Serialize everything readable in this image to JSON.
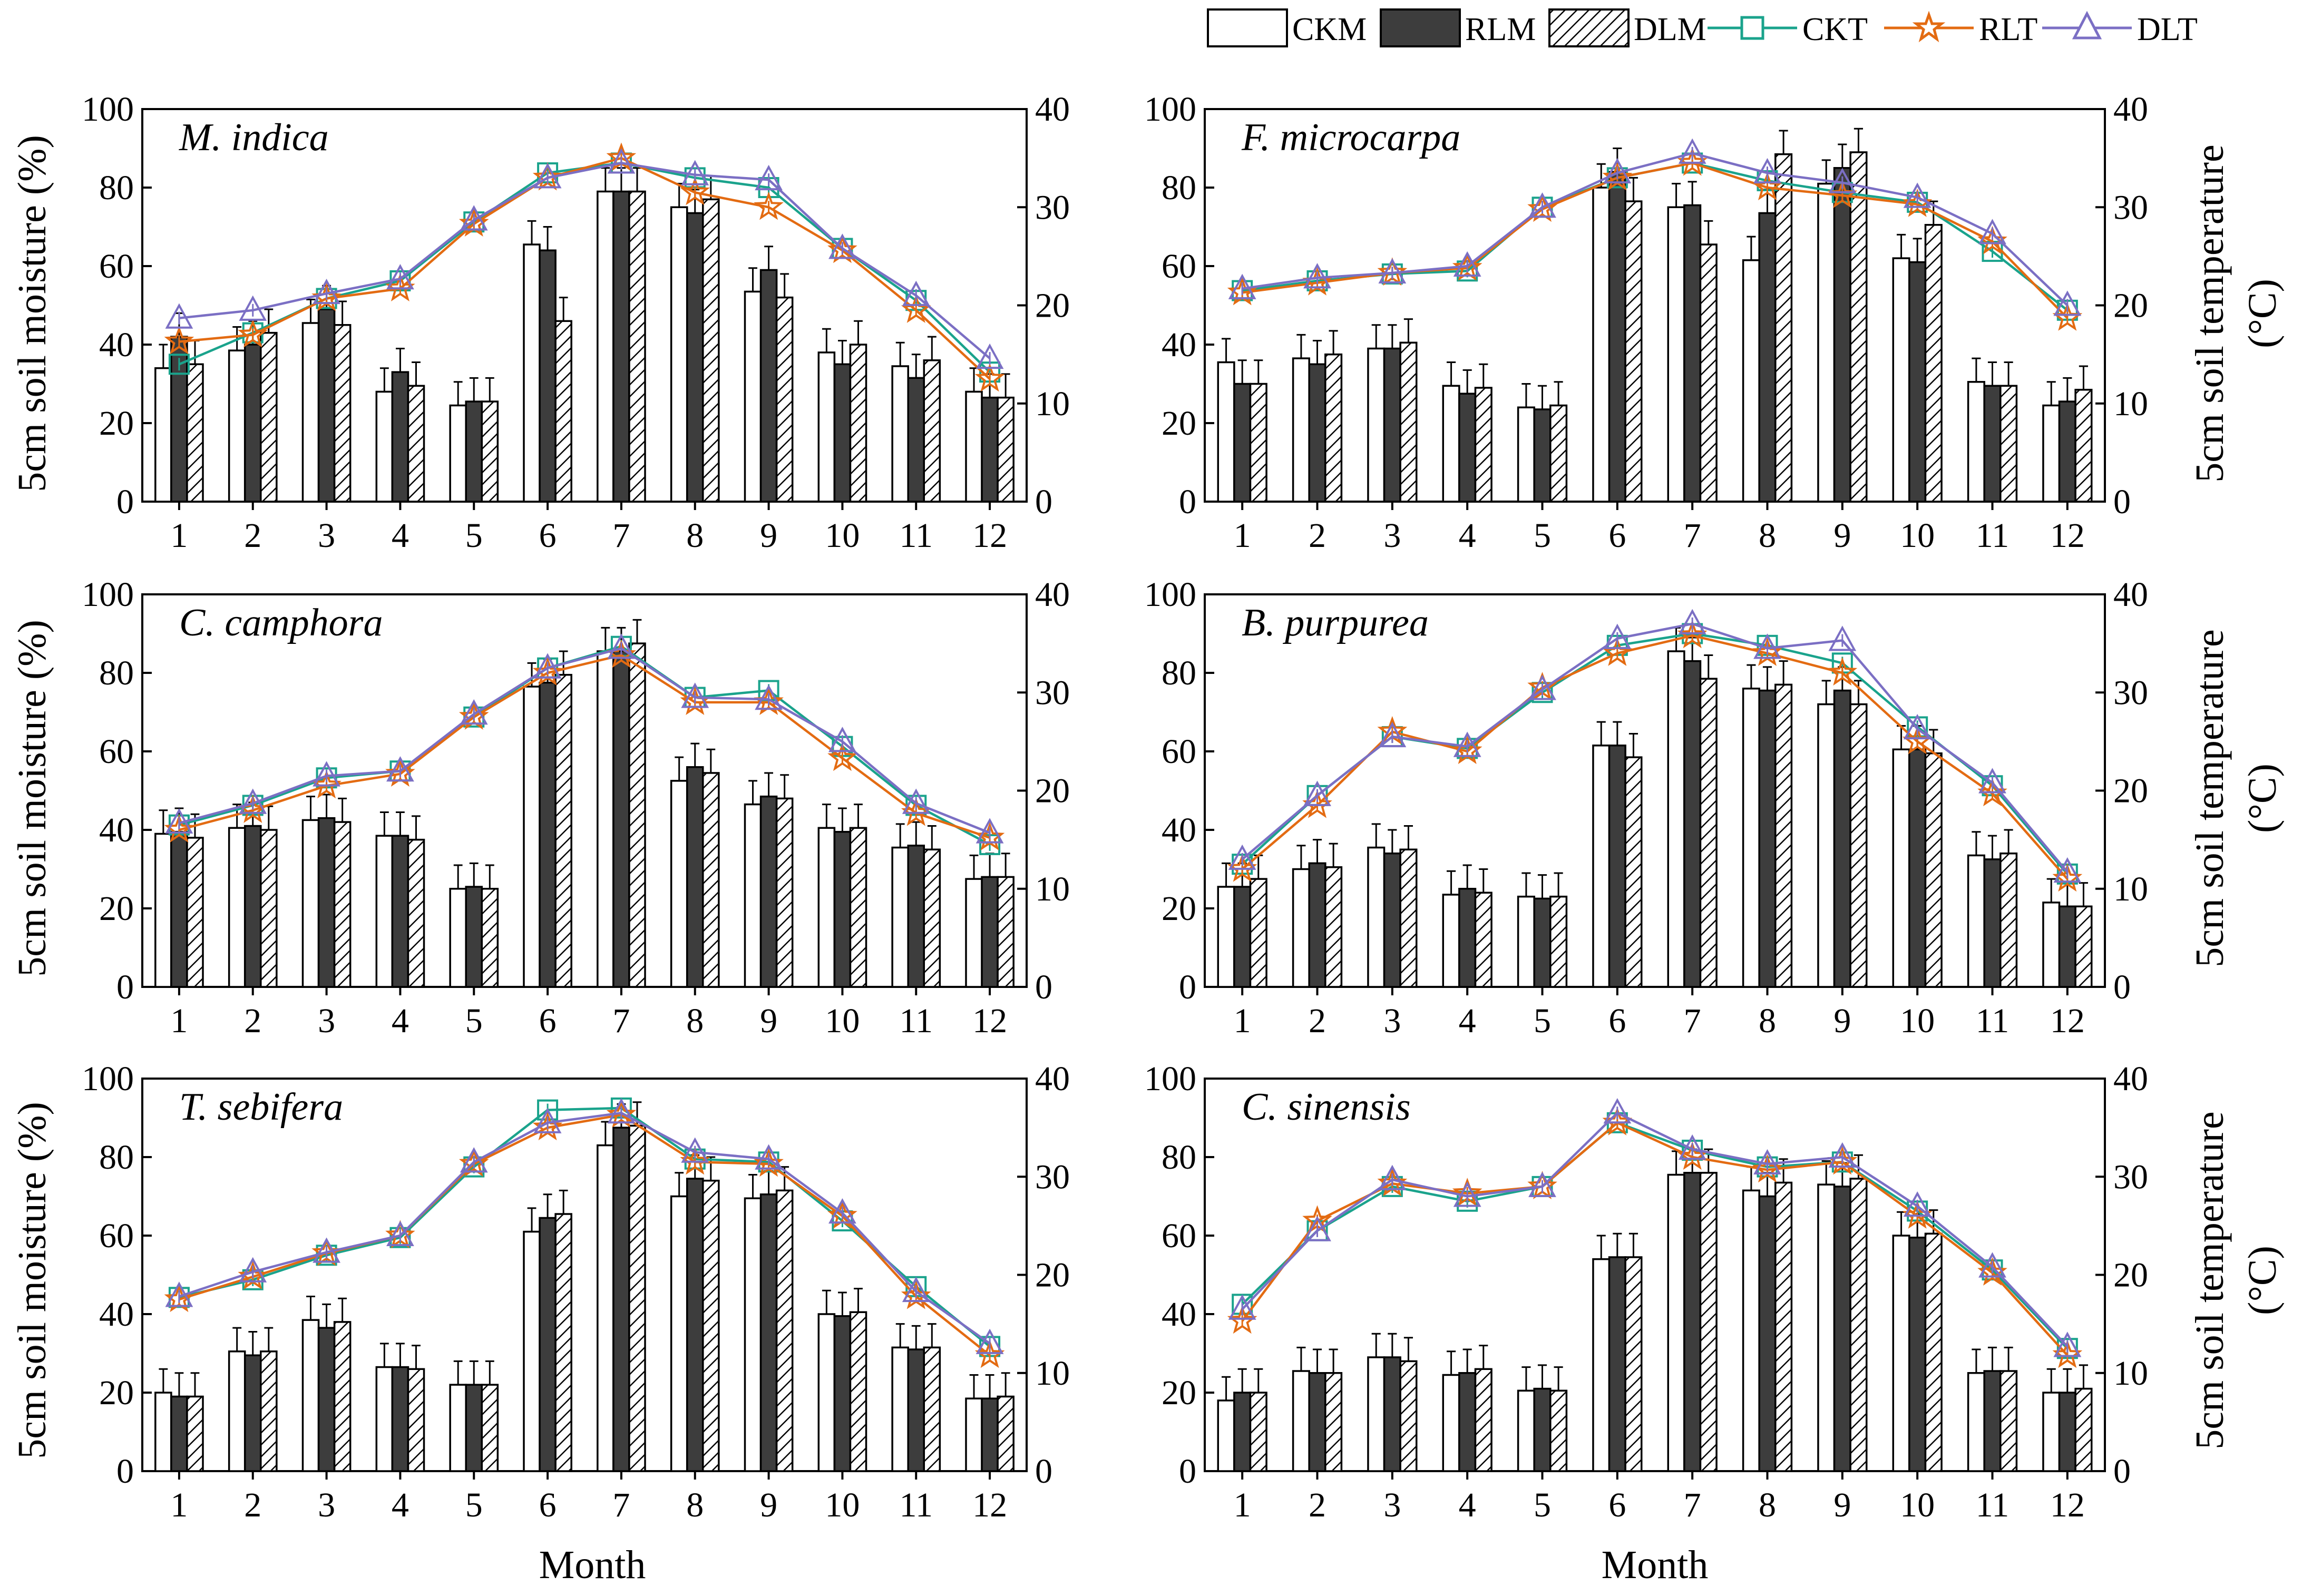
{
  "figure": {
    "xlabel": "Month",
    "ylabel_left": "5cm soil moisture (%)",
    "ylabel_right_line1": "5cm soil temperature",
    "ylabel_right_line2": "(°C)"
  },
  "legend": [
    {
      "key": "CKM",
      "label": "CKM",
      "kind": "bar",
      "style": "white"
    },
    {
      "key": "RLM",
      "label": "RLM",
      "kind": "bar",
      "style": "dark"
    },
    {
      "key": "DLM",
      "label": "DLM",
      "kind": "bar",
      "style": "hatch"
    },
    {
      "key": "CKT",
      "label": "CKT",
      "kind": "line",
      "color": "#1aa38c",
      "marker": "square"
    },
    {
      "key": "RLT",
      "label": "RLT",
      "kind": "line",
      "color": "#e36b12",
      "marker": "star"
    },
    {
      "key": "DLT",
      "label": "DLT",
      "kind": "line",
      "color": "#7b6fc4",
      "marker": "triangle"
    }
  ],
  "colors": {
    "dark": "#3d3d3d",
    "CKT": "#1aa38c",
    "RLT": "#e36b12",
    "DLT": "#7b6fc4"
  },
  "chart_data": [
    {
      "type": "bar+line",
      "title": "M. indica",
      "categories": [
        "1",
        "2",
        "3",
        "4",
        "5",
        "6",
        "7",
        "8",
        "9",
        "10",
        "11",
        "12"
      ],
      "ylim_left": [
        0,
        100
      ],
      "yticks_left": [
        0,
        20,
        40,
        60,
        80,
        100
      ],
      "ylim_right": [
        0,
        40
      ],
      "yticks_right": [
        0,
        10,
        20,
        30,
        40
      ],
      "moisture": {
        "CKM": [
          34,
          38.5,
          45.5,
          28,
          24.5,
          65.5,
          79,
          75,
          53.5,
          38,
          34.5,
          28
        ],
        "RLM": [
          42,
          40,
          49,
          33,
          25.5,
          64,
          79,
          73.5,
          59,
          35,
          31.5,
          26.5
        ],
        "DLM": [
          35,
          43,
          45,
          29.5,
          25.5,
          46,
          79,
          77,
          52,
          40,
          36,
          26.5
        ]
      },
      "temperature": {
        "CKT": [
          14,
          17.2,
          20.7,
          22.5,
          28.5,
          33.5,
          34.5,
          33,
          32,
          25.8,
          20.5,
          13.2
        ],
        "RLT": [
          16.3,
          17,
          20.7,
          21.7,
          28.3,
          33,
          35,
          31.5,
          30,
          25.6,
          19.5,
          12.5
        ],
        "DLT": [
          18.7,
          19.5,
          21.2,
          22.7,
          28.7,
          33,
          34.5,
          33.3,
          32.8,
          25.8,
          21,
          14.6
        ]
      }
    },
    {
      "type": "bar+line",
      "title": "F. microcarpa",
      "categories": [
        "1",
        "2",
        "3",
        "4",
        "5",
        "6",
        "7",
        "8",
        "9",
        "10",
        "11",
        "12"
      ],
      "ylim_left": [
        0,
        100
      ],
      "yticks_left": [
        0,
        20,
        40,
        60,
        80,
        100
      ],
      "ylim_right": [
        0,
        40
      ],
      "yticks_right": [
        0,
        10,
        20,
        30,
        40
      ],
      "moisture": {
        "CKM": [
          35.5,
          36.5,
          39,
          29.5,
          24,
          80,
          75,
          61.5,
          81,
          62,
          30.5,
          24.5
        ],
        "RLM": [
          30,
          35,
          39,
          27.5,
          23.5,
          84,
          75.5,
          73.5,
          85,
          61,
          29.5,
          25.5
        ],
        "DLM": [
          30,
          37.5,
          40.5,
          29,
          24.5,
          76.5,
          65.5,
          88.5,
          89,
          70.5,
          29.5,
          28.5
        ]
      },
      "temperature": {
        "CKT": [
          21.5,
          22.5,
          23.2,
          23.5,
          30,
          33,
          34.5,
          32.7,
          31.5,
          30.5,
          25.5,
          19.5
        ],
        "RLT": [
          21.3,
          22.3,
          23.3,
          23.8,
          29.8,
          33,
          34.5,
          32,
          31.2,
          30.3,
          26.5,
          18.7
        ],
        "DLT": [
          21.7,
          22.8,
          23.3,
          24,
          30,
          33.5,
          35.5,
          33.5,
          32.5,
          31,
          27.3,
          20
        ]
      }
    },
    {
      "type": "bar+line",
      "title": "C. camphora",
      "categories": [
        "1",
        "2",
        "3",
        "4",
        "5",
        "6",
        "7",
        "8",
        "9",
        "10",
        "11",
        "12"
      ],
      "ylim_left": [
        0,
        100
      ],
      "yticks_left": [
        0,
        20,
        40,
        60,
        80,
        100
      ],
      "ylim_right": [
        0,
        40
      ],
      "yticks_right": [
        0,
        10,
        20,
        30,
        40
      ],
      "moisture": {
        "CKM": [
          39,
          40.5,
          42.5,
          38.5,
          25,
          76.5,
          85.5,
          52.5,
          46.5,
          40.5,
          35.5,
          27.5
        ],
        "RLM": [
          39.5,
          41,
          43,
          38.5,
          25.5,
          77.5,
          85.5,
          56,
          48.5,
          39.5,
          36,
          28
        ],
        "DLM": [
          38,
          40,
          42,
          37.5,
          25,
          79.5,
          87.5,
          54.5,
          48,
          40.5,
          35,
          28
        ]
      },
      "temperature": {
        "CKT": [
          16.5,
          18.5,
          21.3,
          22,
          27.5,
          32.5,
          34.7,
          29.5,
          30.2,
          24.5,
          18.5,
          14.5
        ],
        "RLT": [
          16,
          18,
          20.5,
          21.7,
          27.5,
          32,
          33.8,
          29,
          29,
          23.3,
          17.7,
          15.2
        ],
        "DLT": [
          16.7,
          18.7,
          21.5,
          22,
          27.8,
          32.5,
          34.5,
          29.5,
          29.3,
          25,
          18.7,
          15.7
        ]
      }
    },
    {
      "type": "bar+line",
      "title": "B. purpurea",
      "categories": [
        "1",
        "2",
        "3",
        "4",
        "5",
        "6",
        "7",
        "8",
        "9",
        "10",
        "11",
        "12"
      ],
      "ylim_left": [
        0,
        100
      ],
      "yticks_left": [
        0,
        20,
        40,
        60,
        80,
        100
      ],
      "ylim_right": [
        0,
        40
      ],
      "yticks_right": [
        0,
        10,
        20,
        30,
        40
      ],
      "moisture": {
        "CKM": [
          25.5,
          30,
          35.5,
          23.5,
          23,
          61.5,
          85.5,
          76,
          72,
          60.5,
          33.5,
          21.5
        ],
        "RLM": [
          25.5,
          31.5,
          34,
          25,
          22.5,
          61.5,
          83,
          75.5,
          75.5,
          60.5,
          32.5,
          20.5
        ],
        "DLM": [
          27.5,
          30.5,
          35,
          24,
          23,
          58.5,
          78.5,
          77,
          72,
          59.5,
          34,
          20.5
        ]
      },
      "temperature": {
        "CKT": [
          12.5,
          19.5,
          25.5,
          24.3,
          30,
          34.8,
          36,
          34.8,
          33,
          26.5,
          20.5,
          11.5
        ],
        "RLT": [
          12,
          18.5,
          26,
          24,
          30.5,
          34,
          35.8,
          34,
          32,
          25,
          19.7,
          11
        ],
        "DLT": [
          13,
          19.5,
          25.5,
          24.5,
          30.3,
          35.5,
          37,
          34.5,
          35.3,
          26.3,
          20.8,
          11.7
        ]
      }
    },
    {
      "type": "bar+line",
      "title": "T. sebifera",
      "categories": [
        "1",
        "2",
        "3",
        "4",
        "5",
        "6",
        "7",
        "8",
        "9",
        "10",
        "11",
        "12"
      ],
      "ylim_left": [
        0,
        100
      ],
      "yticks_left": [
        0,
        20,
        40,
        60,
        80,
        100
      ],
      "ylim_right": [
        0,
        40
      ],
      "yticks_right": [
        0,
        10,
        20,
        30,
        40
      ],
      "moisture": {
        "CKM": [
          20,
          30.5,
          38.5,
          26.5,
          22,
          61,
          83,
          70,
          69.5,
          40,
          31.5,
          18.5
        ],
        "RLM": [
          19,
          29.5,
          36.5,
          26.5,
          22,
          64.5,
          87.5,
          74.5,
          70.5,
          39.5,
          31,
          18.5
        ],
        "DLM": [
          19,
          30.5,
          38,
          26,
          22,
          65.5,
          88,
          74,
          71.5,
          40.5,
          31.5,
          19
        ]
      },
      "temperature": {
        "CKT": [
          17.7,
          19.5,
          22,
          23.8,
          31,
          36.8,
          37,
          31.8,
          31.5,
          25.5,
          18.8,
          12.7
        ],
        "RLT": [
          17.5,
          19.8,
          22.2,
          24,
          31.3,
          35,
          36.3,
          31.5,
          31.3,
          26,
          17.8,
          11.8
        ],
        "DLT": [
          17.8,
          20.3,
          22.3,
          24,
          31.5,
          35.5,
          36.5,
          32.5,
          31.8,
          26.3,
          18.3,
          13
        ]
      }
    },
    {
      "type": "bar+line",
      "title": "C. sinensis",
      "categories": [
        "1",
        "2",
        "3",
        "4",
        "5",
        "6",
        "7",
        "8",
        "9",
        "10",
        "11",
        "12"
      ],
      "ylim_left": [
        0,
        100
      ],
      "yticks_left": [
        0,
        20,
        40,
        60,
        80,
        100
      ],
      "ylim_right": [
        0,
        40
      ],
      "yticks_right": [
        0,
        10,
        20,
        30,
        40
      ],
      "moisture": {
        "CKM": [
          18,
          25.5,
          29,
          24.5,
          20.5,
          54,
          75.5,
          71.5,
          73,
          60,
          25,
          20
        ],
        "RLM": [
          20,
          25,
          29,
          25,
          21,
          54.5,
          76,
          70,
          72.5,
          59.5,
          25.5,
          20
        ],
        "DLM": [
          20,
          25,
          28,
          26,
          20.5,
          54.5,
          76,
          73.5,
          74.5,
          60.5,
          25.5,
          21
        ]
      },
      "temperature": {
        "CKT": [
          17,
          24.5,
          29,
          27.5,
          29,
          35.5,
          32.7,
          31,
          31.5,
          26.5,
          20.5,
          12.5
        ],
        "RLT": [
          15.3,
          25.5,
          29.3,
          28.3,
          29,
          35.5,
          32,
          30.7,
          31.5,
          26,
          20.2,
          11.8
        ],
        "DLT": [
          16.5,
          24.5,
          29.7,
          28,
          29,
          36.5,
          32.8,
          31.3,
          32,
          27,
          20.8,
          12.7
        ]
      }
    }
  ]
}
